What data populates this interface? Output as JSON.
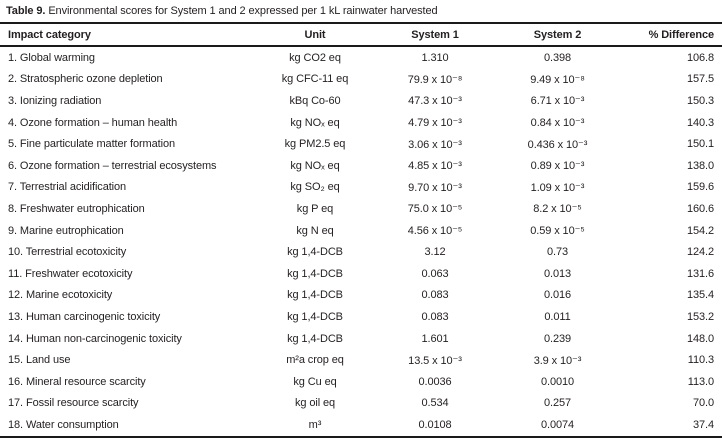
{
  "table": {
    "caption_label": "Table 9.",
    "caption_text": "Environmental scores for System 1 and 2 expressed per 1 kL rainwater harvested",
    "columns": [
      "Impact category",
      "Unit",
      "System 1",
      "System 2",
      "% Difference"
    ],
    "rows": [
      {
        "category": "1. Global warming",
        "unit": "kg CO2 eq",
        "system1": "1.310",
        "system2": "0.398",
        "difference": "106.8"
      },
      {
        "category": "2. Stratospheric ozone depletion",
        "unit": "kg CFC-11 eq",
        "system1": "79.9 x 10⁻⁸",
        "system2": "9.49 x 10⁻⁸",
        "difference": "157.5"
      },
      {
        "category": "3. Ionizing radiation",
        "unit": "kBq Co-60",
        "system1": "47.3 x 10⁻³",
        "system2": "6.71 x 10⁻³",
        "difference": "150.3"
      },
      {
        "category": "4. Ozone formation – human health",
        "unit": "kg NOₓ eq",
        "system1": "4.79 x 10⁻³",
        "system2": "0.84 x 10⁻³",
        "difference": "140.3"
      },
      {
        "category": "5. Fine particulate matter formation",
        "unit": "kg PM2.5 eq",
        "system1": "3.06 x 10⁻³",
        "system2": "0.436 x 10⁻³",
        "difference": "150.1"
      },
      {
        "category": "6. Ozone formation – terrestrial ecosystems",
        "unit": "kg NOₓ eq",
        "system1": "4.85 x 10⁻³",
        "system2": "0.89 x 10⁻³",
        "difference": "138.0"
      },
      {
        "category": "7. Terrestrial acidification",
        "unit": "kg SO₂ eq",
        "system1": "9.70 x 10⁻³",
        "system2": "1.09 x 10⁻³",
        "difference": "159.6"
      },
      {
        "category": "8. Freshwater eutrophication",
        "unit": "kg P eq",
        "system1": "75.0 x 10⁻⁵",
        "system2": "8.2 x 10⁻⁵",
        "difference": "160.6"
      },
      {
        "category": "9. Marine eutrophication",
        "unit": "kg N eq",
        "system1": "4.56 x 10⁻⁵",
        "system2": "0.59 x 10⁻⁵",
        "difference": "154.2"
      },
      {
        "category": "10. Terrestrial ecotoxicity",
        "unit": "kg 1,4-DCB",
        "system1": "3.12",
        "system2": "0.73",
        "difference": "124.2"
      },
      {
        "category": "11. Freshwater ecotoxicity",
        "unit": "kg 1,4-DCB",
        "system1": "0.063",
        "system2": "0.013",
        "difference": "131.6"
      },
      {
        "category": "12. Marine ecotoxicity",
        "unit": "kg 1,4-DCB",
        "system1": "0.083",
        "system2": "0.016",
        "difference": "135.4"
      },
      {
        "category": "13. Human carcinogenic toxicity",
        "unit": "kg 1,4-DCB",
        "system1": "0.083",
        "system2": "0.011",
        "difference": "153.2"
      },
      {
        "category": "14. Human non-carcinogenic toxicity",
        "unit": "kg 1,4-DCB",
        "system1": "1.601",
        "system2": "0.239",
        "difference": "148.0"
      },
      {
        "category": "15. Land use",
        "unit": "m²a crop eq",
        "system1": "13.5 x 10⁻³",
        "system2": "3.9 x 10⁻³",
        "difference": "110.3"
      },
      {
        "category": "16. Mineral resource scarcity",
        "unit": "kg Cu eq",
        "system1": "0.0036",
        "system2": "0.0010",
        "difference": "113.0"
      },
      {
        "category": "17. Fossil resource scarcity",
        "unit": "kg oil eq",
        "system1": "0.534",
        "system2": "0.257",
        "difference": "70.0"
      },
      {
        "category": "18. Water consumption",
        "unit": "m³",
        "system1": "0.0108",
        "system2": "0.0074",
        "difference": "37.4"
      }
    ]
  },
  "colors": {
    "text": "#231f20",
    "rule": "#1a1a1a",
    "background": "#ffffff"
  }
}
